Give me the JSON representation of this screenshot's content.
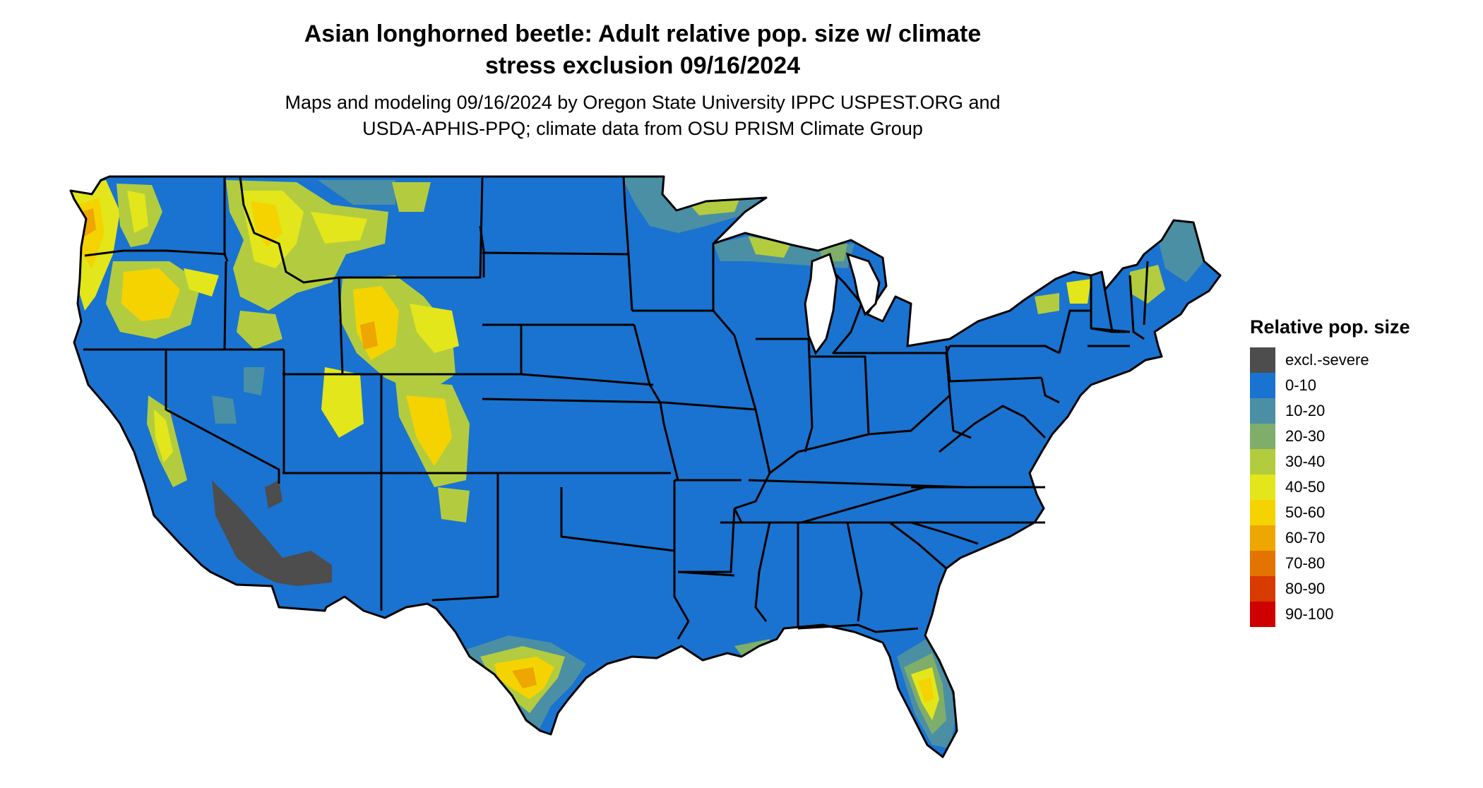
{
  "title_line1": "Asian longhorned beetle: Adult relative pop. size w/ climate",
  "title_line2": "stress exclusion 09/16/2024",
  "subtitle_line1": "Maps and modeling 09/16/2024 by Oregon State University IPPC USPEST.ORG and",
  "subtitle_line2": "USDA-APHIS-PPQ; climate data from OSU PRISM Climate Group",
  "legend": {
    "title": "Relative pop. size",
    "items": [
      {
        "label": "excl.-severe",
        "color": "#4d4d4d"
      },
      {
        "label": "0-10",
        "color": "#1a73d0"
      },
      {
        "label": "10-20",
        "color": "#4a8fa4"
      },
      {
        "label": "20-30",
        "color": "#7fae6b"
      },
      {
        "label": "30-40",
        "color": "#b3cc3f"
      },
      {
        "label": "40-50",
        "color": "#e2e61a"
      },
      {
        "label": "50-60",
        "color": "#f5d300"
      },
      {
        "label": "60-70",
        "color": "#eea600"
      },
      {
        "label": "70-80",
        "color": "#e37400"
      },
      {
        "label": "80-90",
        "color": "#d83a00"
      },
      {
        "label": "90-100",
        "color": "#cf0000"
      }
    ]
  },
  "colors": {
    "base": "#1a73d0",
    "border": "#000000"
  }
}
